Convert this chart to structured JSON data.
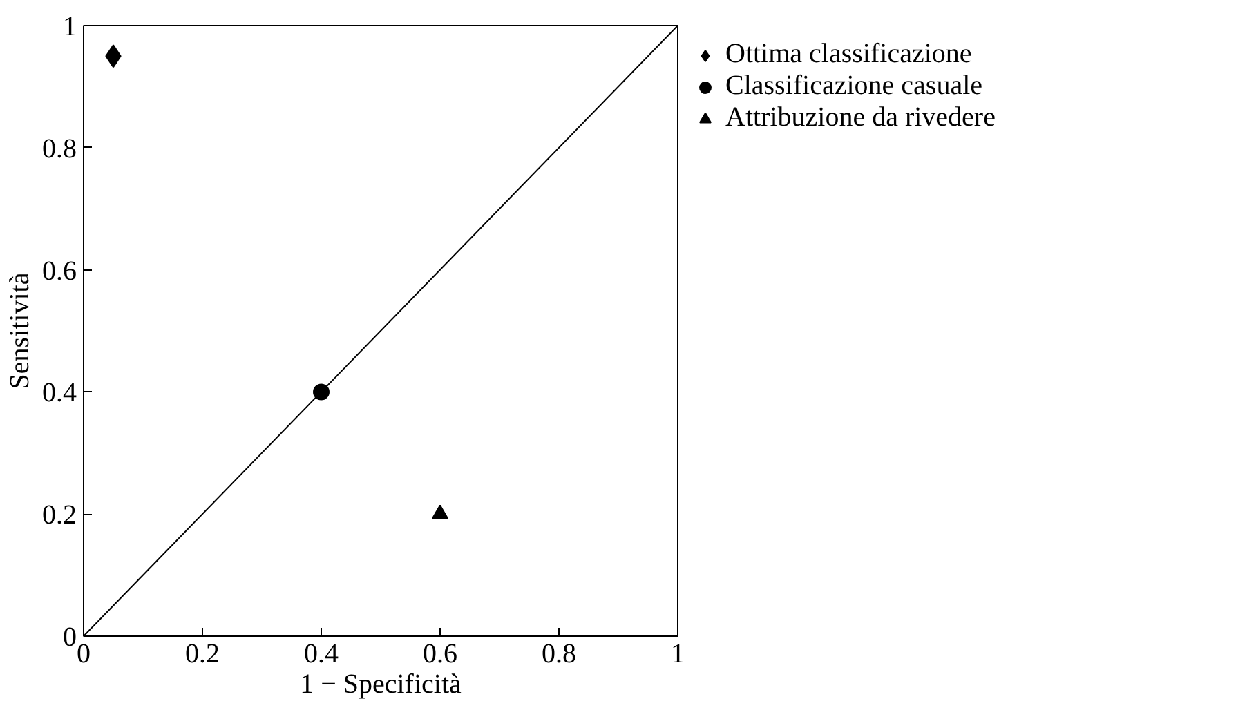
{
  "chart_data": {
    "type": "scatter",
    "xlabel": "1 − Specificità",
    "ylabel": "Sensitività",
    "xlim": [
      0,
      1
    ],
    "ylim": [
      0,
      1
    ],
    "xticks": [
      0,
      0.2,
      0.4,
      0.6,
      0.8,
      1
    ],
    "yticks": [
      0,
      0.2,
      0.4,
      0.6,
      0.8,
      1
    ],
    "grid": false,
    "legend": "right",
    "series": [
      {
        "type": "line",
        "color": "#000000",
        "x": [
          0,
          1
        ],
        "values": [
          0,
          1
        ],
        "marker": "none"
      },
      {
        "name": "Ottima classificazione",
        "color": "#000000",
        "x": [
          0.05
        ],
        "values": [
          0.95
        ],
        "marker": "diamond"
      },
      {
        "name": "Classificazione casuale",
        "color": "#000000",
        "x": [
          0.4
        ],
        "values": [
          0.4
        ],
        "marker": "circle"
      },
      {
        "name": "Attribuzione da rivedere",
        "color": "#000000",
        "x": [
          0.6
        ],
        "values": [
          0.2
        ],
        "marker": "triangle"
      }
    ]
  }
}
